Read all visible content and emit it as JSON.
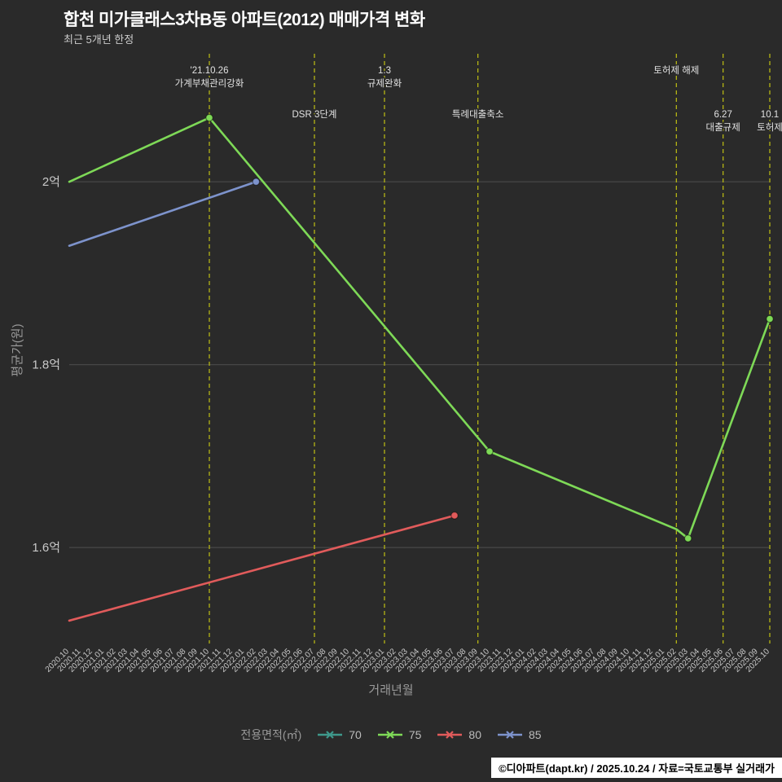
{
  "header": {
    "title": "합천 미가클래스3차B동 아파트(2012) 매매가격 변화",
    "subtitle": "최근 5개년 한정"
  },
  "footer": {
    "credit": "©디아파트(dapt.kr) / 2025.10.24 / 자료=국토교통부 실거래가"
  },
  "colors": {
    "background": "#2a2a2a",
    "grid": "#474747",
    "annotation_line": "#b4b414",
    "tick_text": "#c9c9c9",
    "axis_title": "#9a9a9a",
    "annotation_text": "#e2e2e2"
  },
  "chart_data": {
    "type": "line",
    "xlabel": "거래년월",
    "ylabel": "평균가(원)",
    "unit": "억",
    "ylim": [
      1.495,
      2.14
    ],
    "y_ticks": [
      {
        "label": "2억",
        "value": 2.0
      },
      {
        "label": "1.8억",
        "value": 1.8
      },
      {
        "label": "1.6억",
        "value": 1.6
      }
    ],
    "x_categories": [
      "2020.10",
      "2020.11",
      "2020.12",
      "2021.01",
      "2021.02",
      "2021.03",
      "2021.04",
      "2021.05",
      "2021.06",
      "2021.07",
      "2021.08",
      "2021.09",
      "2021.10",
      "2021.11",
      "2021.12",
      "2022.01",
      "2022.02",
      "2022.03",
      "2022.04",
      "2022.05",
      "2022.06",
      "2022.07",
      "2022.08",
      "2022.09",
      "2022.10",
      "2022.11",
      "2022.12",
      "2023.01",
      "2023.02",
      "2023.03",
      "2023.04",
      "2023.05",
      "2023.06",
      "2023.07",
      "2023.08",
      "2023.09",
      "2023.10",
      "2023.11",
      "2023.12",
      "2024.01",
      "2024.02",
      "2024.03",
      "2024.04",
      "2024.05",
      "2024.06",
      "2024.07",
      "2024.08",
      "2024.09",
      "2024.10",
      "2024.11",
      "2024.12",
      "2025.01",
      "2025.02",
      "2025.03",
      "2025.04",
      "2025.05",
      "2025.06",
      "2025.07",
      "2025.08",
      "2025.09",
      "2025.10"
    ],
    "series": [
      {
        "name": "70",
        "color": "#3e988b",
        "points": []
      },
      {
        "name": "75",
        "color": "#7ed957",
        "points": [
          {
            "x": "2020.10",
            "y": 2.0,
            "marker": false
          },
          {
            "x": "2021.10",
            "y": 2.07,
            "marker": true
          },
          {
            "x": "2023.10",
            "y": 1.705,
            "marker": true
          },
          {
            "x": "2025.02",
            "y": 1.62,
            "marker": false
          },
          {
            "x": "2025.03",
            "y": 1.61,
            "marker": true
          },
          {
            "x": "2025.10",
            "y": 1.85,
            "marker": true
          }
        ]
      },
      {
        "name": "80",
        "color": "#e15b5b",
        "points": [
          {
            "x": "2020.10",
            "y": 1.52,
            "marker": false
          },
          {
            "x": "2023.07",
            "y": 1.635,
            "marker": true
          }
        ]
      },
      {
        "name": "85",
        "color": "#7d93cc",
        "points": [
          {
            "x": "2020.10",
            "y": 1.93,
            "marker": false
          },
          {
            "x": "2022.02",
            "y": 2.0,
            "marker": true
          }
        ]
      }
    ],
    "annotations": [
      {
        "x": "2021.10",
        "lines": [
          "'21.10.26",
          "가계부채관리강화"
        ],
        "level": 0
      },
      {
        "x": "2022.07",
        "lines": [
          "DSR 3단계"
        ],
        "level": 1
      },
      {
        "x": "2023.01",
        "lines": [
          "1.3",
          "규제완화"
        ],
        "level": 0
      },
      {
        "x": "2023.09",
        "lines": [
          "특례대출축소"
        ],
        "level": 1
      },
      {
        "x": "2025.02",
        "lines": [
          "토허제 해제"
        ],
        "level": 0
      },
      {
        "x": "2025.06",
        "lines": [
          "6.27",
          "대출규제"
        ],
        "level": 1
      },
      {
        "x": "2025.10",
        "lines": [
          "10.1",
          "토허제"
        ],
        "level": 1
      }
    ],
    "legend": {
      "title": "전용면적(㎡)",
      "entries": [
        {
          "label": "70",
          "color": "#3e988b"
        },
        {
          "label": "75",
          "color": "#7ed957"
        },
        {
          "label": "80",
          "color": "#e15b5b"
        },
        {
          "label": "85",
          "color": "#7d93cc"
        }
      ]
    }
  }
}
